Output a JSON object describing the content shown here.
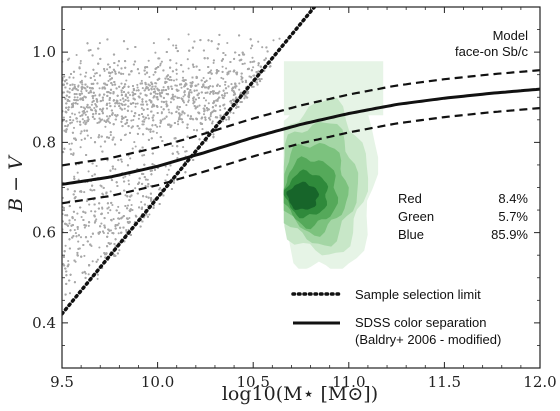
{
  "chart_data": {
    "type": "scatter",
    "xlabel": "log10(M⋆ [M⊙])",
    "ylabel": "B − V",
    "xlim": [
      9.5,
      12.0
    ],
    "ylim": [
      0.3,
      1.1
    ],
    "xticks": [
      "9.5",
      "10.0",
      "10.5",
      "11.0",
      "11.5",
      "12.0"
    ],
    "xtick_values": [
      9.5,
      10.0,
      10.5,
      11.0,
      11.5,
      12.0
    ],
    "yticks": [
      "0.4",
      "0.6",
      "0.8",
      "1.0"
    ],
    "ytick_values": [
      0.4,
      0.6,
      0.8,
      1.0
    ],
    "annotation_top": [
      "Model",
      "face-on Sb/c"
    ],
    "fractions": [
      {
        "label": "Red",
        "value": "8.4%"
      },
      {
        "label": "Green",
        "value": "5.7%"
      },
      {
        "label": "Blue",
        "value": "85.9%"
      }
    ],
    "legend": [
      {
        "label": "Sample selection limit",
        "style": "dotted"
      },
      {
        "label": "SDSS color separation",
        "style": "solid"
      },
      {
        "label": "(Baldry+ 2006 - modified)",
        "style": "none"
      }
    ],
    "selection_limit": {
      "x": [
        9.5,
        10.82
      ],
      "y": [
        0.42,
        1.1
      ]
    },
    "separation_line": {
      "x": [
        9.5,
        9.75,
        10.0,
        10.25,
        10.5,
        10.75,
        11.0,
        11.25,
        11.5,
        11.75,
        12.0
      ],
      "y": [
        0.707,
        0.723,
        0.747,
        0.778,
        0.811,
        0.84,
        0.864,
        0.884,
        0.898,
        0.909,
        0.918
      ],
      "offset": 0.042
    },
    "scatter": {
      "color": "#a8a8a8",
      "n_points": 3800
    },
    "density_region": {
      "x_min": 10.66,
      "x_max": 11.28,
      "y_min": 0.52,
      "y_max": 0.98,
      "colors": [
        "#e6f4e6",
        "#c8e7c8",
        "#a4d6a5",
        "#7cc27e",
        "#55a95a",
        "#2f8a3b",
        "#17652a"
      ]
    },
    "grid": false
  }
}
